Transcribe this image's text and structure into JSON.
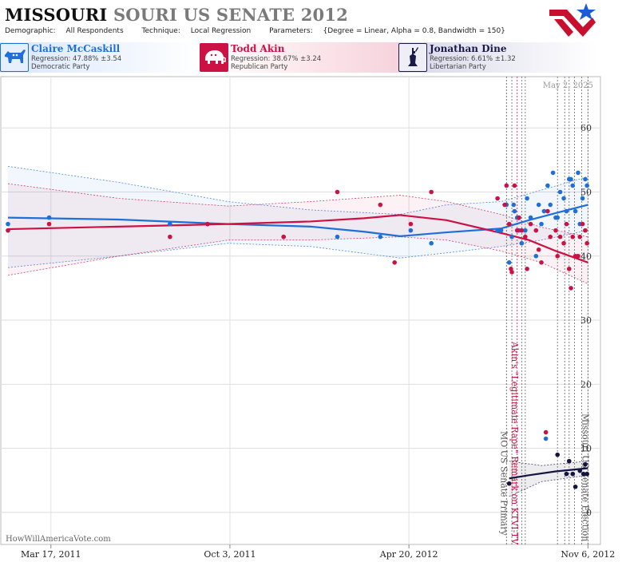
{
  "header": {
    "title_state": "MISSOURI",
    "title_rest": "SOURI US SENATE 2012",
    "params": [
      {
        "label": "Demographic:",
        "value": "All Respondents"
      },
      {
        "label": "Technique:",
        "value": "Local Regression"
      },
      {
        "label": "Parameters:",
        "value": "{Degree = Linear, Alpha = 0.8, Bandwidth = 150}"
      }
    ]
  },
  "candidates": [
    {
      "name": "Claire McCaskill",
      "regression": "Regression: 47.88% ±3.54",
      "party": "Democratic Party",
      "color": "#1f6fd8",
      "icon": "donkey-icon"
    },
    {
      "name": "Todd Akin",
      "regression": "Regression: 38.67% ±3.24",
      "party": "Republican Party",
      "color": "#cc1144",
      "icon": "elephant-icon"
    },
    {
      "name": "Jonathan Dine",
      "regression": "Regression: 6.61% ±1.32",
      "party": "Libertarian Party",
      "color": "#1a1a4a",
      "icon": "liberty-icon"
    }
  ],
  "watermark": "HowWillAmericaVote.com",
  "current_date": "May 2, 2025",
  "chart_data": {
    "type": "scatter",
    "title": "",
    "xlabel": "",
    "ylabel": "",
    "x_ticks": [
      "Mar 17, 2011",
      "Oct 3, 2011",
      "Apr 20, 2012",
      "Nov 6, 2012"
    ],
    "xlim": [
      "2011-01-20",
      "2012-11-20"
    ],
    "ylim": [
      -5,
      68
    ],
    "y_ticks": [
      0,
      10,
      20,
      30,
      40,
      50,
      60
    ],
    "grid": true,
    "events": [
      {
        "date": "2012-08-07",
        "label": "MO US Senate Primary",
        "color": "#555555"
      },
      {
        "date": "2012-08-19",
        "label": "Akin's \"Legitimate Rape\" Remark on KTVI-TV",
        "color": "#cc1144"
      },
      {
        "date": "2012-11-06",
        "label": "Missouri US Senate Election",
        "color": "#555555"
      }
    ],
    "extra_event_dates": [
      "2012-08-13",
      "2012-08-24",
      "2012-08-28",
      "2012-10-03",
      "2012-10-11",
      "2012-10-16",
      "2012-10-22",
      "2012-10-30"
    ],
    "series": [
      {
        "name": "Claire McCaskill",
        "color": "#1f6fd8",
        "points": [
          [
            "2011-01-28",
            45
          ],
          [
            "2011-03-15",
            46
          ],
          [
            "2011-07-28",
            45
          ],
          [
            "2011-09-08",
            45
          ],
          [
            "2011-12-02",
            43
          ],
          [
            "2012-01-31",
            43
          ],
          [
            "2012-03-19",
            43
          ],
          [
            "2012-04-22",
            44
          ],
          [
            "2012-05-15",
            42
          ],
          [
            "2012-07-28",
            44
          ],
          [
            "2012-08-01",
            44
          ],
          [
            "2012-08-07",
            48
          ],
          [
            "2012-08-10",
            39
          ],
          [
            "2012-08-13",
            43
          ],
          [
            "2012-08-15",
            48
          ],
          [
            "2012-08-16",
            47
          ],
          [
            "2012-08-19",
            46
          ],
          [
            "2012-08-21",
            44
          ],
          [
            "2012-08-24",
            42
          ],
          [
            "2012-08-28",
            44
          ],
          [
            "2012-08-30",
            49
          ],
          [
            "2012-09-03",
            46
          ],
          [
            "2012-09-09",
            40
          ],
          [
            "2012-09-12",
            48
          ],
          [
            "2012-09-15",
            45
          ],
          [
            "2012-09-18",
            47
          ],
          [
            "2012-09-22",
            51
          ],
          [
            "2012-09-25",
            48
          ],
          [
            "2012-09-28",
            53
          ],
          [
            "2012-10-01",
            46
          ],
          [
            "2012-10-03",
            46
          ],
          [
            "2012-10-06",
            50
          ],
          [
            "2012-10-10",
            49
          ],
          [
            "2012-10-13",
            47
          ],
          [
            "2012-10-16",
            52
          ],
          [
            "2012-10-18",
            52
          ],
          [
            "2012-10-20",
            51
          ],
          [
            "2012-10-23",
            47
          ],
          [
            "2012-10-26",
            53
          ],
          [
            "2012-10-28",
            45
          ],
          [
            "2012-10-31",
            49
          ],
          [
            "2012-11-03",
            52
          ],
          [
            "2012-11-05",
            51
          ],
          [
            "2012-09-20",
            11.5
          ]
        ],
        "trend": [
          [
            "2011-01-28",
            46
          ],
          [
            "2011-06-01",
            45.7
          ],
          [
            "2011-10-01",
            45
          ],
          [
            "2012-01-01",
            44.6
          ],
          [
            "2012-03-01",
            43.8
          ],
          [
            "2012-04-10",
            43.1
          ],
          [
            "2012-06-01",
            43.7
          ],
          [
            "2012-08-01",
            44.3
          ],
          [
            "2012-09-01",
            45.6
          ],
          [
            "2012-10-01",
            46.7
          ],
          [
            "2012-11-06",
            48.0
          ]
        ],
        "band_upper": [
          [
            "2011-01-28",
            54
          ],
          [
            "2011-06-01",
            51.5
          ],
          [
            "2011-10-01",
            48.5
          ],
          [
            "2012-01-01",
            47.2
          ],
          [
            "2012-04-10",
            46.5
          ],
          [
            "2012-06-01",
            48
          ],
          [
            "2012-08-01",
            48.5
          ],
          [
            "2012-09-15",
            50.3
          ],
          [
            "2012-11-06",
            52.4
          ]
        ],
        "band_lower": [
          [
            "2011-01-28",
            38.2
          ],
          [
            "2011-06-01",
            40
          ],
          [
            "2011-10-01",
            42
          ],
          [
            "2012-01-01",
            41.5
          ],
          [
            "2012-04-10",
            39.7
          ],
          [
            "2012-06-01",
            40.5
          ],
          [
            "2012-08-01",
            41.5
          ],
          [
            "2012-09-15",
            42.5
          ],
          [
            "2012-11-06",
            44
          ]
        ]
      },
      {
        "name": "Todd Akin",
        "color": "#cc1144",
        "points": [
          [
            "2011-01-28",
            44
          ],
          [
            "2011-03-15",
            45
          ],
          [
            "2011-07-28",
            43
          ],
          [
            "2011-09-08",
            45
          ],
          [
            "2011-12-02",
            43
          ],
          [
            "2012-01-31",
            50
          ],
          [
            "2012-03-19",
            48
          ],
          [
            "2012-04-04",
            39
          ],
          [
            "2012-04-22",
            45
          ],
          [
            "2012-05-15",
            50
          ],
          [
            "2012-07-28",
            49
          ],
          [
            "2012-08-05",
            48
          ],
          [
            "2012-08-07",
            51
          ],
          [
            "2012-08-10",
            45
          ],
          [
            "2012-08-12",
            38
          ],
          [
            "2012-08-13",
            37.5
          ],
          [
            "2012-08-16",
            51
          ],
          [
            "2012-08-19",
            44
          ],
          [
            "2012-08-21",
            46
          ],
          [
            "2012-08-24",
            44
          ],
          [
            "2012-08-28",
            43
          ],
          [
            "2012-08-30",
            38
          ],
          [
            "2012-09-03",
            45
          ],
          [
            "2012-09-09",
            44
          ],
          [
            "2012-09-12",
            41
          ],
          [
            "2012-09-15",
            39
          ],
          [
            "2012-09-22",
            47
          ],
          [
            "2012-09-25",
            43
          ],
          [
            "2012-10-01",
            44
          ],
          [
            "2012-10-03",
            40
          ],
          [
            "2012-10-06",
            43
          ],
          [
            "2012-10-10",
            42
          ],
          [
            "2012-10-13",
            45
          ],
          [
            "2012-10-16",
            38
          ],
          [
            "2012-10-18",
            35
          ],
          [
            "2012-10-20",
            43
          ],
          [
            "2012-10-23",
            40
          ],
          [
            "2012-10-26",
            40
          ],
          [
            "2012-10-28",
            43
          ],
          [
            "2012-10-31",
            45
          ],
          [
            "2012-11-03",
            44
          ],
          [
            "2012-11-05",
            42
          ],
          [
            "2012-09-20",
            12.5
          ]
        ],
        "trend": [
          [
            "2011-01-28",
            44.2
          ],
          [
            "2011-06-01",
            44.6
          ],
          [
            "2011-10-01",
            45
          ],
          [
            "2012-01-01",
            45.4
          ],
          [
            "2012-03-01",
            45.9
          ],
          [
            "2012-04-10",
            46.4
          ],
          [
            "2012-06-01",
            45.6
          ],
          [
            "2012-08-01",
            43.6
          ],
          [
            "2012-09-01",
            42.5
          ],
          [
            "2012-10-01",
            40.8
          ],
          [
            "2012-11-06",
            39.0
          ]
        ],
        "band_upper": [
          [
            "2011-01-28",
            51.3
          ],
          [
            "2011-06-01",
            49
          ],
          [
            "2011-10-01",
            47.8
          ],
          [
            "2012-01-01",
            48.5
          ],
          [
            "2012-04-10",
            49.5
          ],
          [
            "2012-06-01",
            48.5
          ],
          [
            "2012-08-01",
            46.5
          ],
          [
            "2012-09-15",
            44.5
          ],
          [
            "2012-11-06",
            43
          ]
        ],
        "band_lower": [
          [
            "2011-01-28",
            37
          ],
          [
            "2011-06-01",
            40
          ],
          [
            "2011-10-01",
            42.5
          ],
          [
            "2012-01-01",
            42.5
          ],
          [
            "2012-04-10",
            43
          ],
          [
            "2012-06-01",
            42.5
          ],
          [
            "2012-08-01",
            40.8
          ],
          [
            "2012-09-15",
            39
          ],
          [
            "2012-11-06",
            35.7
          ]
        ]
      },
      {
        "name": "Jonathan Dine",
        "color": "#141440",
        "points": [
          [
            "2012-08-10",
            4.5
          ],
          [
            "2012-10-03",
            9
          ],
          [
            "2012-10-13",
            6
          ],
          [
            "2012-10-16",
            8
          ],
          [
            "2012-10-20",
            6
          ],
          [
            "2012-10-23",
            4
          ],
          [
            "2012-10-28",
            6.5
          ],
          [
            "2012-11-01",
            6
          ],
          [
            "2012-11-03",
            7.5
          ],
          [
            "2012-11-05",
            6
          ]
        ],
        "trend": [
          [
            "2012-08-10",
            5.3
          ],
          [
            "2012-09-01",
            5.8
          ],
          [
            "2012-10-01",
            6.4
          ],
          [
            "2012-11-06",
            6.9
          ]
        ],
        "band_upper": [
          [
            "2012-08-10",
            8
          ],
          [
            "2012-09-15",
            7.3
          ],
          [
            "2012-11-06",
            8
          ]
        ],
        "band_lower": [
          [
            "2012-08-10",
            2.5
          ],
          [
            "2012-09-15",
            4.8
          ],
          [
            "2012-11-06",
            5.8
          ]
        ]
      }
    ]
  }
}
